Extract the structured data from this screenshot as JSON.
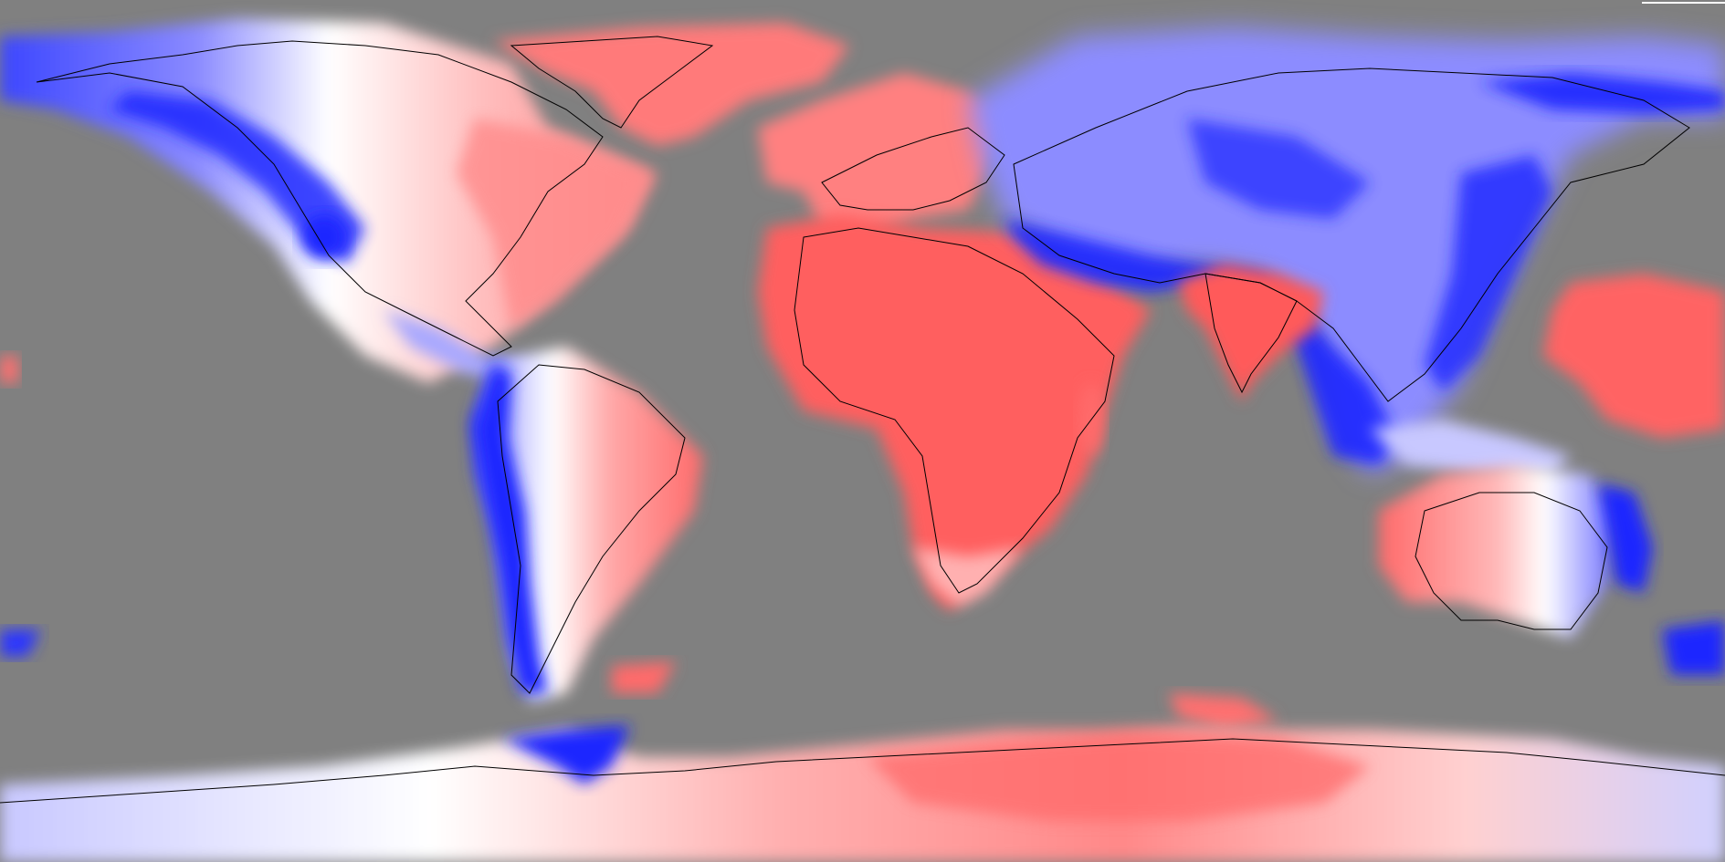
{
  "map": {
    "projection": "equirectangular",
    "colors": {
      "background": "#808080",
      "positive": "#ff5a5a",
      "positive_light": "#ffb0b0",
      "neutral": "#ffffff",
      "negative_light": "#b4b4ff",
      "negative": "#1e28ff",
      "coastline": "#000000"
    }
  }
}
